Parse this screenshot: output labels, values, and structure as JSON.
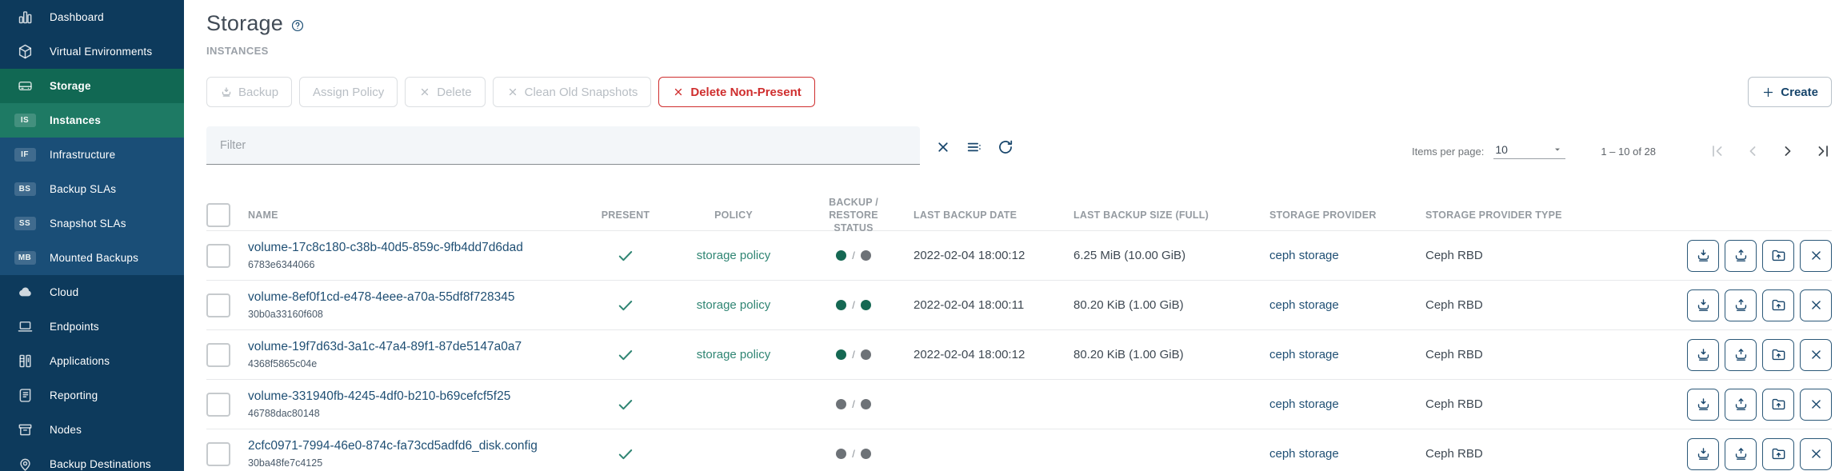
{
  "header": {
    "title": "Storage",
    "subtitle": "INSTANCES"
  },
  "sidebar": {
    "items": [
      {
        "label": "Dashboard",
        "icon": "bar-chart-icon"
      },
      {
        "label": "Virtual Environments",
        "icon": "cube-icon"
      },
      {
        "label": "Storage",
        "icon": "storage-drive-icon",
        "state": "selected-parent"
      },
      {
        "label": "Instances",
        "badge": "IS",
        "sub": true,
        "state": "selected"
      },
      {
        "label": "Infrastructure",
        "badge": "IF",
        "sub": true
      },
      {
        "label": "Backup SLAs",
        "badge": "BS",
        "sub": true
      },
      {
        "label": "Snapshot SLAs",
        "badge": "SS",
        "sub": true
      },
      {
        "label": "Mounted Backups",
        "badge": "MB",
        "sub": true
      },
      {
        "label": "Cloud",
        "icon": "cloud-icon"
      },
      {
        "label": "Endpoints",
        "icon": "endpoints-icon"
      },
      {
        "label": "Applications",
        "icon": "applications-icon"
      },
      {
        "label": "Reporting",
        "icon": "reporting-icon"
      },
      {
        "label": "Nodes",
        "icon": "nodes-icon"
      },
      {
        "label": "Backup Destinations",
        "icon": "pin-icon"
      }
    ]
  },
  "toolbar": {
    "buttons": [
      {
        "name": "backup-button",
        "label": "Backup",
        "icon": "tray-down-icon",
        "state": "disabled"
      },
      {
        "name": "assign-policy-button",
        "label": "Assign Policy",
        "state": "disabled"
      },
      {
        "name": "delete-button",
        "label": "Delete",
        "icon": "x-icon",
        "state": "disabled"
      },
      {
        "name": "clean-old-snapshots-button",
        "label": "Clean Old Snapshots",
        "icon": "x-icon",
        "state": "disabled"
      },
      {
        "name": "delete-non-present-button",
        "label": "Delete Non-Present",
        "icon": "x-icon",
        "state": "danger"
      }
    ],
    "create_label": "Create"
  },
  "filter": {
    "placeholder": "Filter"
  },
  "paginator": {
    "items_per_page_label": "Items per page:",
    "items_per_page_value": "10",
    "range_label": "1 – 10 of 28"
  },
  "table": {
    "columns": [
      "NAME",
      "PRESENT",
      "POLICY",
      "BACKUP / RESTORE STATUS",
      "LAST BACKUP DATE",
      "LAST BACKUP SIZE (FULL)",
      "STORAGE PROVIDER",
      "STORAGE PROVIDER TYPE"
    ],
    "row_actions": [
      {
        "name": "backup-button",
        "icon": "tray-down-icon"
      },
      {
        "name": "restore-button",
        "icon": "tray-up-icon"
      },
      {
        "name": "restore-to-folder-button",
        "icon": "folder-up-icon"
      },
      {
        "name": "delete-button",
        "icon": "x-icon"
      }
    ],
    "rows": [
      {
        "name": "volume-17c8c180-c38b-40d5-859c-9fb4dd7d6dad",
        "id": "6783e6344066",
        "present": true,
        "policy": "storage policy",
        "backup_status": "green",
        "restore_status": "gray",
        "last_backup_date": "2022-02-04 18:00:12",
        "last_backup_size": "6.25 MiB (10.00 GiB)",
        "storage_provider": "ceph storage",
        "storage_provider_type": "Ceph RBD"
      },
      {
        "name": "volume-8ef0f1cd-e478-4eee-a70a-55df8f728345",
        "id": "30b0a33160f608",
        "present": true,
        "policy": "storage policy",
        "backup_status": "green",
        "restore_status": "green",
        "last_backup_date": "2022-02-04 18:00:11",
        "last_backup_size": "80.20 KiB (1.00 GiB)",
        "storage_provider": "ceph storage",
        "storage_provider_type": "Ceph RBD"
      },
      {
        "name": "volume-19f7d63d-3a1c-47a4-89f1-87de5147a0a7",
        "id": "4368f5865c04e",
        "present": true,
        "policy": "storage policy",
        "backup_status": "green",
        "restore_status": "gray",
        "last_backup_date": "2022-02-04 18:00:12",
        "last_backup_size": "80.20 KiB (1.00 GiB)",
        "storage_provider": "ceph storage",
        "storage_provider_type": "Ceph RBD"
      },
      {
        "name": "volume-331940fb-4245-4df0-b210-b69cefcf5f25",
        "id": "46788dac80148",
        "present": true,
        "policy": "",
        "backup_status": "gray",
        "restore_status": "gray",
        "last_backup_date": "",
        "last_backup_size": "",
        "storage_provider": "ceph storage",
        "storage_provider_type": "Ceph RBD"
      },
      {
        "name": "2cfc0971-7994-46e0-874c-fa73cd5adfd6_disk.config",
        "id": "30ba48fe7c4125",
        "present": true,
        "policy": "",
        "backup_status": "gray",
        "restore_status": "gray",
        "last_backup_date": "",
        "last_backup_size": "",
        "storage_provider": "ceph storage",
        "storage_provider_type": "Ceph RBD"
      }
    ]
  },
  "colors": {
    "sidebar_bg": "#0d3a5c",
    "sidebar_subgroup_bg": "#1a4e77",
    "selected_parent_bg": "#116853",
    "selected_bg": "#1e7a64",
    "accent_navy": "#17456b",
    "link_navy": "#1f4f74",
    "link_teal": "#2f8573",
    "danger_red": "#cf2e2e",
    "status_green": "#156853",
    "status_gray": "#6d7277"
  }
}
